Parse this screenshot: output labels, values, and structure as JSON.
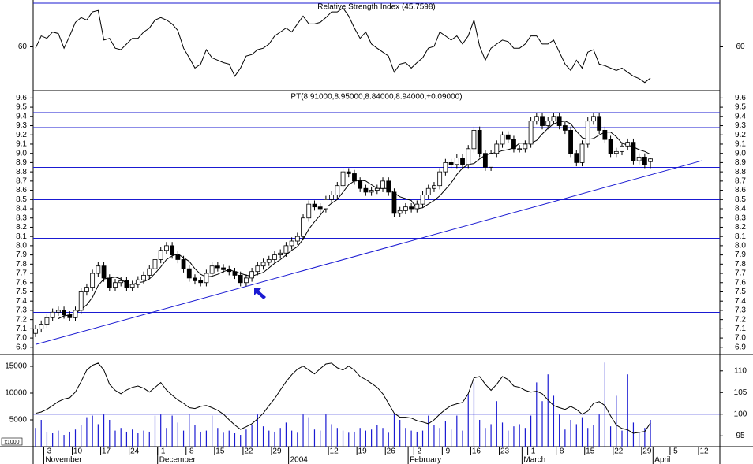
{
  "chart_data": [
    {
      "type": "line",
      "title": "Relative Strength Index (45.7598)",
      "ylim": [
        40,
        80
      ],
      "yticks": [
        60
      ],
      "series": [
        {
          "color": "#000000",
          "values": [
            59.4,
            65.0,
            63.9,
            66.8,
            66.1,
            59.4,
            65.0,
            71.2,
            73.4,
            72.3,
            76.0,
            76.7,
            63.1,
            63.9,
            59.4,
            58.7,
            61.3,
            63.9,
            63.9,
            66.8,
            68.6,
            72.3,
            73.4,
            72.3,
            70.5,
            67.5,
            59.4,
            55.0,
            50.3,
            52.1,
            58.7,
            55.0,
            53.9,
            52.8,
            52.1,
            46.6,
            50.3,
            55.8,
            56.5,
            58.7,
            59.4,
            61.3,
            65.0,
            66.8,
            68.6,
            66.8,
            70.5,
            74.1,
            70.5,
            70.5,
            71.2,
            73.4,
            76.0,
            76.0,
            77.8,
            74.1,
            68.6,
            63.9,
            66.8,
            61.3,
            59.4,
            57.6,
            55.8,
            48.4,
            52.1,
            52.8,
            50.3,
            52.8,
            55.0,
            59.4,
            60.2,
            66.8,
            65.0,
            63.1,
            65.0,
            61.3,
            65.0,
            72.3,
            60.2,
            53.9,
            59.4,
            61.3,
            63.1,
            62.4,
            59.4,
            59.4,
            61.3,
            65.0,
            65.0,
            61.3,
            61.3,
            63.1,
            57.6,
            52.1,
            49.2,
            53.9,
            50.3,
            57.6,
            58.7,
            52.1,
            51.4,
            50.3,
            49.2,
            50.3,
            48.4,
            46.6,
            45.5,
            43.7,
            45.76,
            null,
            null,
            null,
            null,
            null,
            null,
            null,
            null,
            null
          ]
        }
      ]
    },
    {
      "type": "candlestick",
      "title": "PT(8.91000,8.95000,8.84000,8.94000,+0.09000)",
      "ylim": [
        6.83,
        9.68
      ],
      "yticks": [
        6.9,
        {
          "value": 7,
          "label": "7.0"
        },
        7.1,
        7.2,
        7.3,
        7.4,
        7.5,
        7.6,
        7.7,
        7.8,
        7.9,
        {
          "value": 8,
          "label": "8.0"
        },
        8.1,
        8.2,
        8.3,
        8.4,
        8.5,
        8.6,
        8.7,
        8.8,
        8.9,
        {
          "value": 9,
          "label": "9.0"
        },
        9.1,
        9.2,
        9.3,
        9.4,
        9.5,
        9.6
      ],
      "color": "#000000",
      "open": [
        7.05,
        7.1,
        7.15,
        7.22,
        7.28,
        7.3,
        7.25,
        7.22,
        7.3,
        7.5,
        7.55,
        7.7,
        7.78,
        7.65,
        7.55,
        7.6,
        7.62,
        7.55,
        7.58,
        7.63,
        7.68,
        7.75,
        7.85,
        7.95,
        8.0,
        7.9,
        7.85,
        7.75,
        7.65,
        7.62,
        7.6,
        7.7,
        7.78,
        7.76,
        7.74,
        7.72,
        7.68,
        7.6,
        7.65,
        7.72,
        7.78,
        7.82,
        7.85,
        7.9,
        7.92,
        8.0,
        8.05,
        8.1,
        8.3,
        8.45,
        8.42,
        8.4,
        8.5,
        8.55,
        8.65,
        8.8,
        8.78,
        8.7,
        8.62,
        8.58,
        8.6,
        8.62,
        8.7,
        8.58,
        8.35,
        8.38,
        8.42,
        8.4,
        8.45,
        8.55,
        8.62,
        8.65,
        8.8,
        8.9,
        8.88,
        8.95,
        8.88,
        9.05,
        9.25,
        9.0,
        8.85,
        9.0,
        9.1,
        9.2,
        9.15,
        9.05,
        9.05,
        9.1,
        9.35,
        9.4,
        9.3,
        9.35,
        9.4,
        9.3,
        9.25,
        9.0,
        8.9,
        9.1,
        9.35,
        9.4,
        9.25,
        9.15,
        9.0,
        9.02,
        9.08,
        9.12,
        8.92,
        8.96,
        8.91,
        null,
        null,
        null,
        null,
        null,
        null,
        null,
        null,
        null
      ],
      "high": [
        7.14,
        7.19,
        7.26,
        7.32,
        7.34,
        7.34,
        7.29,
        7.34,
        7.54,
        7.59,
        7.74,
        7.82,
        7.82,
        7.69,
        7.64,
        7.66,
        7.66,
        7.62,
        7.67,
        7.72,
        7.79,
        7.89,
        7.99,
        8.04,
        8.04,
        7.94,
        7.89,
        7.79,
        7.69,
        7.66,
        7.74,
        7.82,
        7.82,
        7.8,
        7.78,
        7.76,
        7.72,
        7.69,
        7.76,
        7.82,
        7.86,
        7.89,
        7.94,
        7.96,
        8.04,
        8.09,
        8.14,
        8.34,
        8.49,
        8.49,
        8.46,
        8.54,
        8.59,
        8.69,
        8.84,
        8.84,
        8.82,
        8.74,
        8.66,
        8.64,
        8.66,
        8.74,
        8.74,
        8.62,
        8.42,
        8.46,
        8.46,
        8.49,
        8.59,
        8.66,
        8.69,
        8.84,
        8.94,
        8.94,
        8.99,
        8.99,
        9.09,
        9.29,
        9.29,
        9.04,
        9.04,
        9.14,
        9.24,
        9.24,
        9.19,
        9.09,
        9.14,
        9.39,
        9.44,
        9.44,
        9.39,
        9.44,
        9.44,
        9.34,
        9.29,
        9.04,
        9.14,
        9.39,
        9.44,
        9.44,
        9.29,
        9.19,
        9.06,
        9.12,
        9.16,
        9.16,
        9.0,
        9.0,
        8.95,
        null,
        null,
        null,
        null,
        null,
        null,
        null,
        null,
        null
      ],
      "low": [
        7.01,
        7.06,
        7.11,
        7.18,
        7.24,
        7.21,
        7.18,
        7.18,
        7.26,
        7.46,
        7.51,
        7.66,
        7.61,
        7.51,
        7.51,
        7.56,
        7.51,
        7.51,
        7.54,
        7.59,
        7.64,
        7.71,
        7.81,
        7.91,
        7.86,
        7.81,
        7.71,
        7.61,
        7.58,
        7.56,
        7.56,
        7.66,
        7.72,
        7.7,
        7.68,
        7.64,
        7.56,
        7.56,
        7.61,
        7.68,
        7.74,
        7.78,
        7.81,
        7.86,
        7.88,
        7.96,
        8.01,
        8.06,
        8.26,
        8.38,
        8.36,
        8.36,
        8.46,
        8.51,
        8.61,
        8.74,
        8.66,
        8.58,
        8.54,
        8.54,
        8.56,
        8.58,
        8.54,
        8.31,
        8.31,
        8.34,
        8.36,
        8.36,
        8.41,
        8.51,
        8.58,
        8.61,
        8.76,
        8.84,
        8.84,
        8.84,
        8.84,
        9.01,
        8.96,
        8.81,
        8.81,
        8.96,
        9.06,
        9.11,
        9.01,
        9.01,
        9.01,
        9.06,
        9.31,
        9.26,
        9.26,
        9.31,
        9.26,
        9.21,
        8.96,
        8.86,
        8.86,
        9.06,
        9.31,
        9.21,
        9.11,
        8.96,
        8.96,
        8.98,
        9.04,
        8.88,
        8.88,
        8.84,
        8.84,
        null,
        null,
        null,
        null,
        null,
        null,
        null,
        null,
        null
      ],
      "close": [
        7.1,
        7.15,
        7.22,
        7.28,
        7.3,
        7.25,
        7.22,
        7.3,
        7.5,
        7.55,
        7.7,
        7.78,
        7.65,
        7.55,
        7.6,
        7.62,
        7.55,
        7.58,
        7.63,
        7.68,
        7.75,
        7.85,
        7.95,
        8.0,
        7.9,
        7.85,
        7.75,
        7.65,
        7.62,
        7.6,
        7.7,
        7.78,
        7.76,
        7.74,
        7.72,
        7.68,
        7.6,
        7.65,
        7.72,
        7.78,
        7.82,
        7.85,
        7.9,
        7.92,
        8.0,
        8.05,
        8.1,
        8.3,
        8.45,
        8.42,
        8.4,
        8.5,
        8.55,
        8.65,
        8.8,
        8.78,
        8.7,
        8.62,
        8.58,
        8.6,
        8.62,
        8.7,
        8.58,
        8.35,
        8.38,
        8.42,
        8.4,
        8.45,
        8.55,
        8.62,
        8.65,
        8.8,
        8.9,
        8.88,
        8.95,
        8.88,
        9.05,
        9.25,
        9.0,
        8.85,
        9.0,
        9.1,
        9.2,
        9.15,
        9.05,
        9.05,
        9.1,
        9.35,
        9.4,
        9.3,
        9.35,
        9.4,
        9.3,
        9.25,
        9.0,
        8.9,
        9.1,
        9.35,
        9.4,
        9.25,
        9.15,
        9.0,
        9.02,
        9.08,
        9.12,
        8.92,
        8.96,
        8.88,
        8.94,
        null,
        null,
        null,
        null,
        null,
        null,
        null,
        null,
        null
      ],
      "series": [
        {
          "color": "#000000",
          "values": [
            null,
            null,
            null,
            null,
            7.21,
            7.24,
            7.25,
            7.27,
            7.31,
            7.36,
            7.44,
            7.57,
            7.64,
            7.65,
            7.66,
            7.64,
            7.59,
            7.58,
            7.6,
            7.61,
            7.64,
            7.7,
            7.77,
            7.85,
            7.89,
            7.91,
            7.87,
            7.83,
            7.75,
            7.69,
            7.66,
            7.67,
            7.69,
            7.72,
            7.74,
            7.72,
            7.7,
            7.68,
            7.67,
            7.69,
            7.71,
            7.76,
            7.81,
            7.85,
            7.9,
            7.95,
            7.99,
            8.07,
            8.18,
            8.26,
            8.33,
            8.41,
            8.46,
            8.5,
            8.58,
            8.66,
            8.7,
            8.71,
            8.7,
            8.66,
            8.62,
            8.62,
            8.62,
            8.57,
            8.53,
            8.51,
            8.49,
            8.4,
            8.41,
            8.45,
            8.49,
            8.54,
            8.61,
            8.68,
            8.77,
            8.84,
            8.88,
            8.89,
            8.94,
            8.98,
            9.0,
            9.01,
            9.03,
            9.04,
            9.06,
            9.11,
            9.11,
            9.11,
            9.14,
            9.21,
            9.27,
            9.32,
            9.34,
            9.35,
            9.32,
            9.24,
            9.17,
            9.15,
            9.16,
            9.2,
            9.23,
            9.23,
            9.18,
            9.11,
            9.09,
            9.07,
            9.04,
            9.02,
            8.99,
            null,
            null,
            null,
            null,
            null,
            null,
            null,
            null,
            null
          ]
        }
      ],
      "hlines": [
        9.44,
        9.28,
        8.85,
        8.5,
        8.08,
        7.28
      ],
      "hline_color": "#1a1ad2",
      "trendline": [
        6.93,
        8.92
      ]
    },
    {
      "type": "bar",
      "unit_label": "x1000",
      "ylim": [
        0,
        17060
      ],
      "yticks": [
        15000,
        10000,
        5000
      ],
      "y2lim": [
        92.5,
        113.6
      ],
      "y2ticks": [
        110,
        105,
        100,
        95
      ],
      "reference_line": 100,
      "color": "#1a1ad2",
      "values": [
        3500,
        5000,
        2800,
        2500,
        3000,
        2200,
        2800,
        3200,
        4000,
        5500,
        5800,
        4200,
        6000,
        5000,
        3000,
        3500,
        2800,
        3200,
        2500,
        3000,
        2800,
        5800,
        6000,
        3500,
        5800,
        4500,
        3000,
        6000,
        4000,
        2800,
        3000,
        5800,
        3500,
        2600,
        3000,
        2500,
        2200,
        3200,
        4000,
        6000,
        3800,
        3000,
        2800,
        3500,
        4500,
        3000,
        2600,
        6000,
        5500,
        3200,
        3000,
        6000,
        4200,
        3500,
        3000,
        2600,
        2800,
        3500,
        3000,
        3200,
        4000,
        3500,
        2600,
        6200,
        5000,
        3500,
        3000,
        2800,
        3000,
        5800,
        4000,
        3500,
        4800,
        3200,
        5800,
        3000,
        9800,
        12000,
        5000,
        3500,
        4200,
        8500,
        4500,
        3000,
        3800,
        4200,
        3500,
        5800,
        12000,
        8500,
        13500,
        9500,
        6000,
        3200,
        5000,
        4200,
        5500,
        3500,
        4000,
        6000,
        15700,
        3800,
        9500,
        3000,
        13500,
        4500,
        2800,
        3500,
        5000,
        null,
        null,
        null,
        null,
        null,
        null,
        null,
        null,
        null
      ],
      "series": [
        {
          "axis": "y2",
          "color": "#000000",
          "values": [
            100.2,
            100.5,
            101.1,
            102.0,
            102.9,
            103.5,
            103.8,
            105.1,
            107.5,
            110.2,
            111.3,
            111.8,
            110.2,
            106.9,
            105.5,
            104.7,
            105.6,
            106.2,
            106.5,
            106.0,
            105.1,
            106.2,
            107.3,
            105.6,
            104.4,
            103.3,
            102.5,
            101.5,
            101.3,
            101.8,
            102.0,
            101.5,
            100.9,
            100.0,
            98.7,
            97.5,
            96.5,
            97.1,
            97.8,
            98.9,
            100.2,
            102.0,
            103.6,
            105.6,
            107.5,
            109.1,
            110.4,
            111.1,
            110.2,
            109.3,
            110.5,
            111.6,
            111.8,
            110.7,
            110.2,
            111.1,
            110.2,
            108.7,
            108.0,
            107.1,
            106.2,
            104.7,
            102.5,
            100.2,
            99.3,
            99.3,
            99.1,
            98.5,
            98.2,
            97.8,
            98.7,
            100.0,
            101.1,
            102.0,
            102.4,
            102.7,
            104.7,
            108.4,
            108.7,
            106.9,
            105.5,
            106.9,
            108.7,
            108.0,
            106.5,
            106.2,
            105.5,
            105.1,
            105.3,
            104.7,
            103.3,
            102.0,
            101.5,
            101.1,
            101.8,
            101.1,
            100.0,
            100.7,
            102.5,
            102.9,
            102.0,
            99.6,
            97.5,
            96.7,
            96.4,
            95.6,
            95.8,
            96.0,
            98.0,
            null,
            null,
            null,
            null,
            null,
            null,
            null,
            null,
            null
          ]
        }
      ],
      "categories": [
        null,
        null,
        "3",
        null,
        null,
        null,
        null,
        "10",
        null,
        null,
        null,
        null,
        "17",
        null,
        null,
        null,
        null,
        "24",
        null,
        null,
        null,
        null,
        "1",
        null,
        null,
        null,
        null,
        "8",
        null,
        null,
        null,
        null,
        "15",
        null,
        null,
        null,
        null,
        "22",
        null,
        null,
        null,
        null,
        "29",
        null,
        null,
        null,
        null,
        null,
        null,
        null,
        null,
        null,
        "12",
        null,
        null,
        null,
        null,
        "19",
        null,
        null,
        null,
        null,
        "26",
        null,
        null,
        null,
        null,
        "2",
        null,
        null,
        null,
        null,
        "9",
        null,
        null,
        null,
        null,
        "16",
        null,
        null,
        null,
        null,
        "23",
        null,
        null,
        null,
        null,
        "1",
        null,
        null,
        null,
        null,
        "8",
        null,
        null,
        null,
        null,
        "15",
        null,
        null,
        null,
        null,
        "22",
        null,
        null,
        null,
        null,
        "29",
        null,
        null,
        null,
        null,
        "5",
        null,
        null,
        null,
        null,
        "12"
      ],
      "months": [
        null,
        null,
        "November",
        null,
        null,
        null,
        null,
        null,
        null,
        null,
        null,
        null,
        null,
        null,
        null,
        null,
        null,
        null,
        null,
        null,
        null,
        null,
        "December",
        null,
        null,
        null,
        null,
        null,
        null,
        null,
        null,
        null,
        null,
        null,
        null,
        null,
        null,
        null,
        null,
        null,
        null,
        null,
        null,
        null,
        null,
        "2004",
        null,
        null,
        null,
        null,
        null,
        null,
        null,
        null,
        null,
        null,
        null,
        null,
        null,
        null,
        null,
        null,
        null,
        null,
        null,
        null,
        "February",
        null,
        null,
        null,
        null,
        null,
        null,
        null,
        null,
        null,
        null,
        null,
        null,
        null,
        null,
        null,
        null,
        null,
        null,
        null,
        "March",
        null,
        null,
        null,
        null,
        null,
        null,
        null,
        null,
        null,
        null,
        null,
        null,
        null,
        null,
        null,
        null,
        null,
        null,
        null,
        null,
        null,
        null,
        "April",
        null,
        null,
        null,
        null,
        null,
        null,
        null
      ]
    }
  ]
}
